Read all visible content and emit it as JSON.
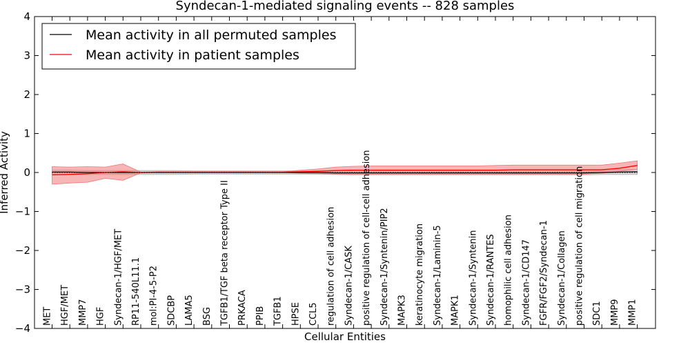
{
  "chart_data": {
    "type": "line",
    "title": "Syndecan-1-mediated signaling events -- 828 samples",
    "xlabel": "Cellular Entities",
    "ylabel": "Inferred Activity",
    "ylim": [
      -4,
      4
    ],
    "yticks": [
      "4",
      "3",
      "2",
      "1",
      "0",
      "−1",
      "−2",
      "−3",
      "−4"
    ],
    "ytick_values": [
      4,
      3,
      2,
      1,
      0,
      -1,
      -2,
      -3,
      -4
    ],
    "grid": false,
    "legend_position": "top-left",
    "categories": [
      "MET",
      "HGF/MET",
      "MMP7",
      "HGF",
      "Syndecan-1/HGF/MET",
      "RP11-540L11.1",
      "mol:PI-4-5-P2",
      "SDCBP",
      "LAMA5",
      "BSG",
      "TGFB1/TGF beta receptor Type II",
      "PRKACA",
      "PPIB",
      "TGFB1",
      "HPSE",
      "CCL5",
      "regulation of cell adhesion",
      "Syndecan-1/CASK",
      "positive regulation of cell-cell adhesion",
      "Syndecan-1/Syntenin/PIP2",
      "MAPK3",
      "keratinocyte migration",
      "Syndecan-1/Laminin-5",
      "MAPK1",
      "Syndecan-1/Syntenin",
      "Syndecan-1/RANTES",
      "homophilic cell adhesion",
      "Syndecan-1/CD147",
      "FGFR/FGF2/Syndecan-1",
      "Syndecan-1/Collagen",
      "positive regulation of cell migration",
      "SDC1",
      "MMP9",
      "MMP1"
    ],
    "series": [
      {
        "name": "Mean activity in all permuted samples",
        "color": "#000000",
        "band_color": "#b0b0b0",
        "values": [
          0.01,
          0.01,
          0.0,
          0.0,
          0.0,
          0.0,
          0.0,
          0.0,
          0.0,
          0.0,
          0.0,
          0.0,
          0.0,
          0.0,
          0.0,
          0.0,
          -0.01,
          -0.01,
          -0.01,
          -0.01,
          -0.01,
          -0.01,
          -0.01,
          -0.01,
          -0.01,
          -0.01,
          -0.01,
          -0.01,
          -0.01,
          -0.01,
          -0.01,
          0.0,
          0.01,
          0.02
        ],
        "band_low": [
          -0.05,
          -0.05,
          -0.05,
          -0.05,
          -0.05,
          -0.05,
          -0.05,
          -0.05,
          -0.04,
          -0.04,
          -0.04,
          -0.04,
          -0.04,
          -0.04,
          -0.04,
          -0.04,
          -0.05,
          -0.06,
          -0.06,
          -0.06,
          -0.06,
          -0.06,
          -0.06,
          -0.06,
          -0.06,
          -0.06,
          -0.06,
          -0.06,
          -0.06,
          -0.06,
          -0.06,
          -0.05,
          -0.05,
          -0.05
        ],
        "band_high": [
          0.06,
          0.06,
          0.05,
          0.05,
          0.05,
          0.05,
          0.05,
          0.05,
          0.04,
          0.04,
          0.04,
          0.04,
          0.04,
          0.04,
          0.04,
          0.04,
          0.05,
          0.06,
          0.06,
          0.06,
          0.06,
          0.06,
          0.06,
          0.06,
          0.06,
          0.06,
          0.06,
          0.06,
          0.06,
          0.06,
          0.06,
          0.06,
          0.07,
          0.08
        ]
      },
      {
        "name": "Mean activity in patient samples",
        "color": "#ff0000",
        "band_color": "#f07878",
        "values": [
          -0.06,
          -0.05,
          -0.03,
          0.0,
          0.02,
          0.0,
          0.01,
          0.01,
          0.01,
          0.01,
          0.01,
          0.01,
          0.01,
          0.01,
          0.02,
          0.03,
          0.05,
          0.06,
          0.06,
          0.06,
          0.06,
          0.06,
          0.06,
          0.06,
          0.06,
          0.06,
          0.07,
          0.07,
          0.07,
          0.07,
          0.07,
          0.07,
          0.11,
          0.18
        ],
        "band_low": [
          -0.3,
          -0.27,
          -0.25,
          -0.15,
          -0.2,
          -0.01,
          0.0,
          0.0,
          0.0,
          0.0,
          0.0,
          0.0,
          0.0,
          0.0,
          -0.02,
          -0.03,
          -0.04,
          -0.04,
          -0.04,
          -0.04,
          -0.04,
          -0.04,
          -0.04,
          -0.04,
          -0.04,
          -0.04,
          -0.04,
          -0.04,
          -0.04,
          -0.04,
          -0.04,
          -0.02,
          0.03,
          0.08
        ],
        "band_high": [
          0.15,
          0.14,
          0.15,
          0.14,
          0.22,
          0.01,
          0.02,
          0.02,
          0.02,
          0.02,
          0.02,
          0.02,
          0.02,
          0.02,
          0.06,
          0.09,
          0.14,
          0.16,
          0.17,
          0.17,
          0.17,
          0.17,
          0.17,
          0.17,
          0.17,
          0.18,
          0.19,
          0.19,
          0.19,
          0.19,
          0.19,
          0.19,
          0.24,
          0.3
        ]
      }
    ]
  }
}
